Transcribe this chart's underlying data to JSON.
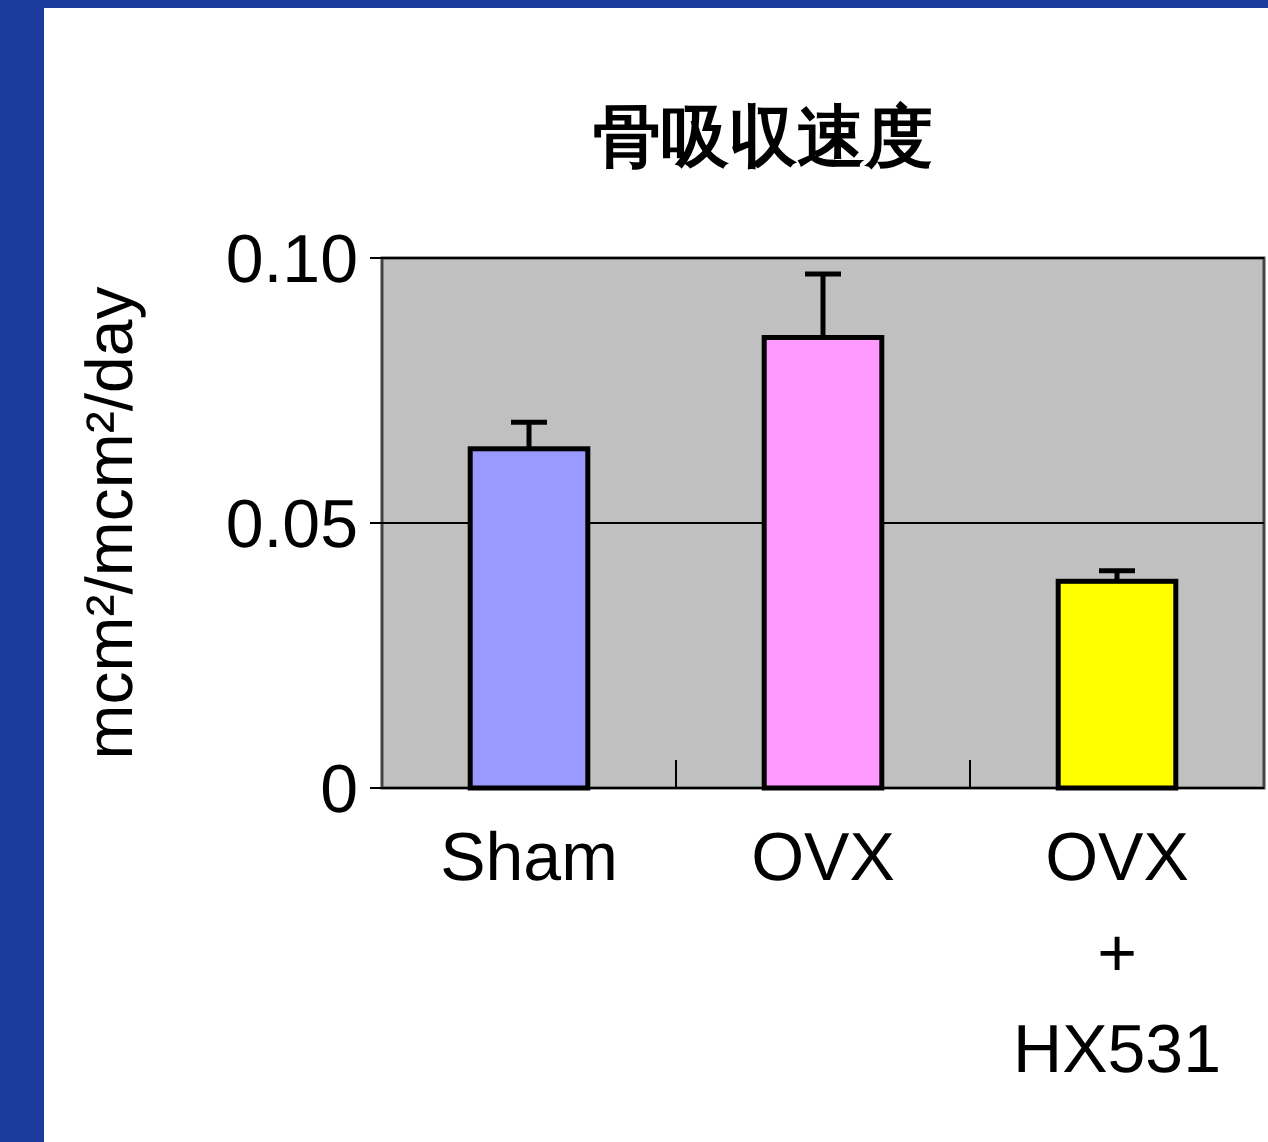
{
  "chart_data": {
    "type": "bar",
    "title": "骨吸収速度",
    "ylabel": "mcm²/mcm²/day",
    "categories": [
      "Sham",
      "OVX",
      "OVX\n+\nHX531"
    ],
    "values": [
      0.064,
      0.085,
      0.039
    ],
    "colors": [
      "#9999ff",
      "#ff99ff",
      "#ffff00"
    ],
    "errors": [
      [
        0.064,
        0.069
      ],
      [
        0.085,
        0.097
      ],
      [
        0.039,
        0.041
      ]
    ],
    "ylim": [
      0,
      0.1
    ],
    "yticks": [
      {
        "value": 0,
        "label": "0"
      },
      {
        "value": 0.05,
        "label": "0.05"
      },
      {
        "value": 0.1,
        "label": "0.10"
      }
    ],
    "grid": "y"
  }
}
